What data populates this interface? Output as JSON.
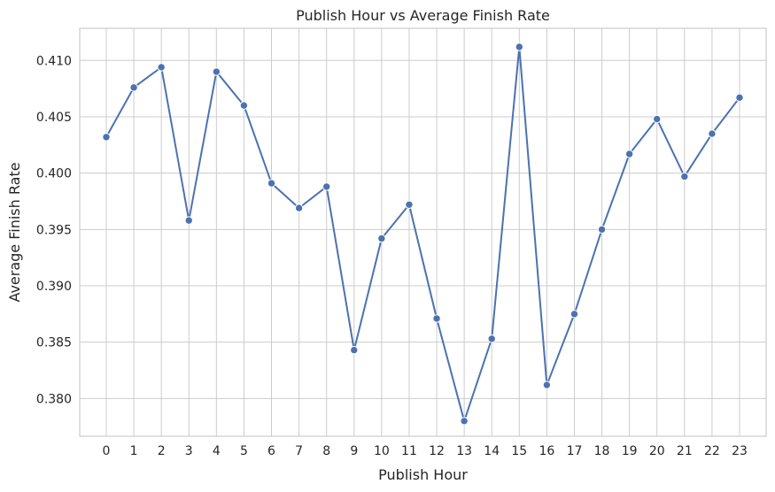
{
  "chart_data": {
    "type": "line",
    "title": "Publish Hour vs Average Finish Rate",
    "xlabel": "Publish Hour",
    "ylabel": "Average Finish Rate",
    "x": [
      0,
      1,
      2,
      3,
      4,
      5,
      6,
      7,
      8,
      9,
      10,
      11,
      12,
      13,
      14,
      15,
      16,
      17,
      18,
      19,
      20,
      21,
      22,
      23
    ],
    "x_tick_labels": [
      "0",
      "1",
      "2",
      "3",
      "4",
      "5",
      "6",
      "7",
      "8",
      "9",
      "10",
      "11",
      "12",
      "13",
      "14",
      "15",
      "16",
      "17",
      "18",
      "19",
      "20",
      "21",
      "22",
      "23"
    ],
    "y_ticks": [
      0.38,
      0.385,
      0.39,
      0.395,
      0.4,
      0.405,
      0.41
    ],
    "y_tick_labels": [
      "0.380",
      "0.385",
      "0.390",
      "0.395",
      "0.400",
      "0.405",
      "0.410"
    ],
    "xlim": [
      -0.965,
      23.965
    ],
    "ylim": [
      0.37665,
      0.41285
    ],
    "grid": true,
    "color": "#4c72b0",
    "series": [
      {
        "values": [
          0.4032,
          0.4076,
          0.4094,
          0.3958,
          0.409,
          0.406,
          0.3991,
          0.3969,
          0.3988,
          0.3843,
          0.3942,
          0.3972,
          0.3871,
          0.378,
          0.3853,
          0.4112,
          0.3812,
          0.3875,
          0.395,
          0.4017,
          0.4048,
          0.3997,
          0.4035,
          0.4067
        ]
      }
    ]
  }
}
